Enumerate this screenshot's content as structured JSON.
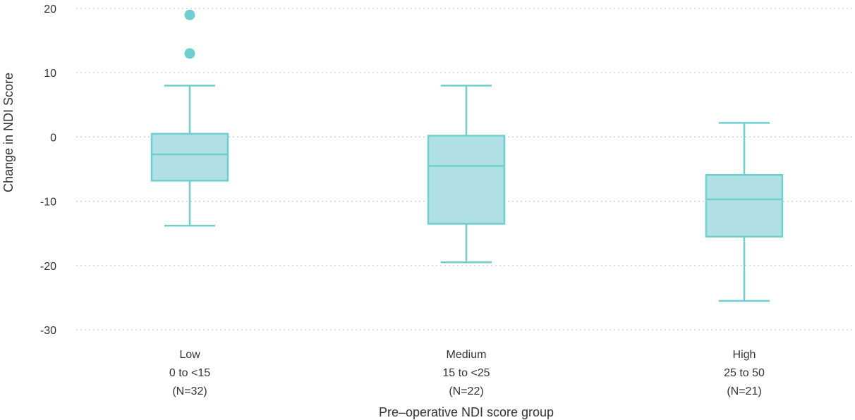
{
  "chart_data": {
    "type": "box",
    "xlabel": "Pre–operative NDI score group",
    "ylabel": "Change in NDI Score",
    "ylim": [
      -30,
      20
    ],
    "yticks": [
      20,
      10,
      0,
      -10,
      -20,
      -30
    ],
    "ytick_labels": [
      "20",
      "10",
      "0",
      "-10",
      "-20",
      "-30"
    ],
    "grid": true,
    "colors": {
      "box_fill": "#b0e0e3",
      "box_stroke": "#6fcfd0",
      "outlier": "#6fcfd0",
      "grid": "#cccccc"
    },
    "groups": [
      {
        "label_lines": [
          "Low",
          "0 to <15",
          "(N=32)"
        ],
        "whisker_low": -13.8,
        "q1": -6.8,
        "median": -2.7,
        "q3": 0.5,
        "whisker_high": 8,
        "outliers": [
          13,
          19
        ]
      },
      {
        "label_lines": [
          "Medium",
          "15 to <25",
          "(N=22)"
        ],
        "whisker_low": -19.5,
        "q1": -13.5,
        "median": -4.5,
        "q3": 0.2,
        "whisker_high": 8,
        "outliers": []
      },
      {
        "label_lines": [
          "High",
          "25 to 50",
          "(N=21)"
        ],
        "whisker_low": -25.5,
        "q1": -15.5,
        "median": -9.7,
        "q3": -5.9,
        "whisker_high": 2.2,
        "outliers": []
      }
    ]
  }
}
